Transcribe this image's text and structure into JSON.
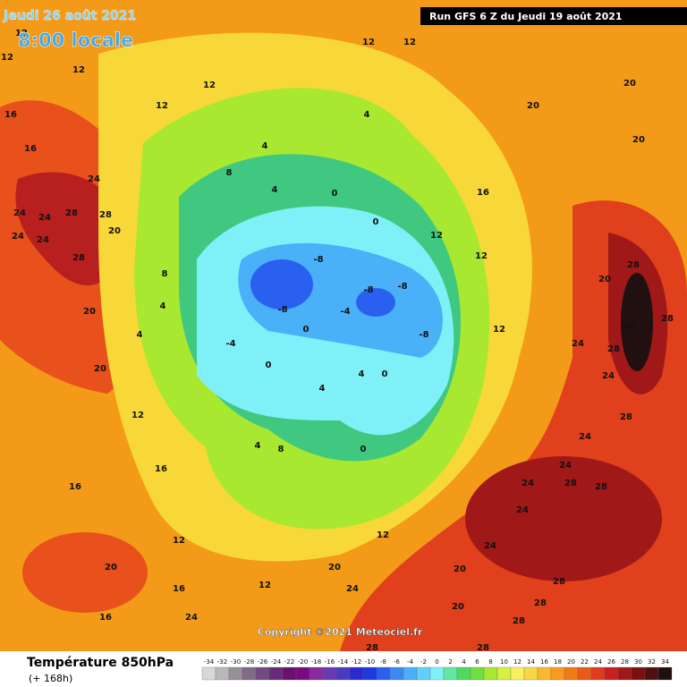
{
  "header": {
    "date": "Jeudi 26 août 2021",
    "time": "8:00 locale",
    "run": "Run GFS 6 Z du Jeudi 19 août 2021"
  },
  "copyright": "Copyright ©2021 Meteociel.fr",
  "footer": {
    "title": "Température 850hPa",
    "lead": "(+ 168h)"
  },
  "legend": {
    "ticks": [
      -34,
      -32,
      -30,
      -28,
      -26,
      -24,
      -22,
      -20,
      -18,
      -16,
      -14,
      -12,
      -10,
      -8,
      -6,
      -4,
      -2,
      0,
      2,
      4,
      6,
      8,
      10,
      12,
      14,
      16,
      18,
      20,
      22,
      24,
      26,
      28,
      30,
      32,
      34
    ],
    "colors": [
      "#d8d8d8",
      "#b8b8b8",
      "#989098",
      "#806a88",
      "#704a80",
      "#6a2a7a",
      "#6a1070",
      "#7a0a80",
      "#8a2aa0",
      "#6a3ab0",
      "#4a3ac0",
      "#2a2ad0",
      "#1a3ae0",
      "#2a60f0",
      "#3a8af0",
      "#4ab0f8",
      "#60d0fa",
      "#80f0f8",
      "#60e8a0",
      "#50d860",
      "#70e040",
      "#a8e830",
      "#d8f040",
      "#f8f060",
      "#f8d840",
      "#f8b830",
      "#f89a20",
      "#f07a18",
      "#e85a18",
      "#e03a20",
      "#c82020",
      "#a01818",
      "#7a1010",
      "#501010",
      "#201010"
    ]
  },
  "contour_labels": [
    24,
    28,
    24,
    24,
    24,
    24,
    28,
    28,
    20,
    20,
    20,
    12,
    12,
    12,
    12,
    12,
    4,
    4,
    8,
    4,
    0,
    0,
    -8,
    -8,
    -8,
    -8,
    -8,
    -4,
    -4,
    0,
    0,
    4,
    4,
    0,
    0,
    8,
    4,
    12,
    12,
    12,
    12,
    12,
    12,
    16,
    20,
    20,
    20,
    28,
    20,
    28,
    28,
    28,
    24,
    24,
    28,
    24,
    24,
    28,
    28,
    24,
    24,
    24,
    28,
    28,
    24,
    20,
    20,
    20,
    28,
    28,
    28,
    24,
    16,
    16,
    20,
    16,
    16,
    12,
    4,
    8,
    4,
    16,
    16,
    12,
    12
  ]
}
